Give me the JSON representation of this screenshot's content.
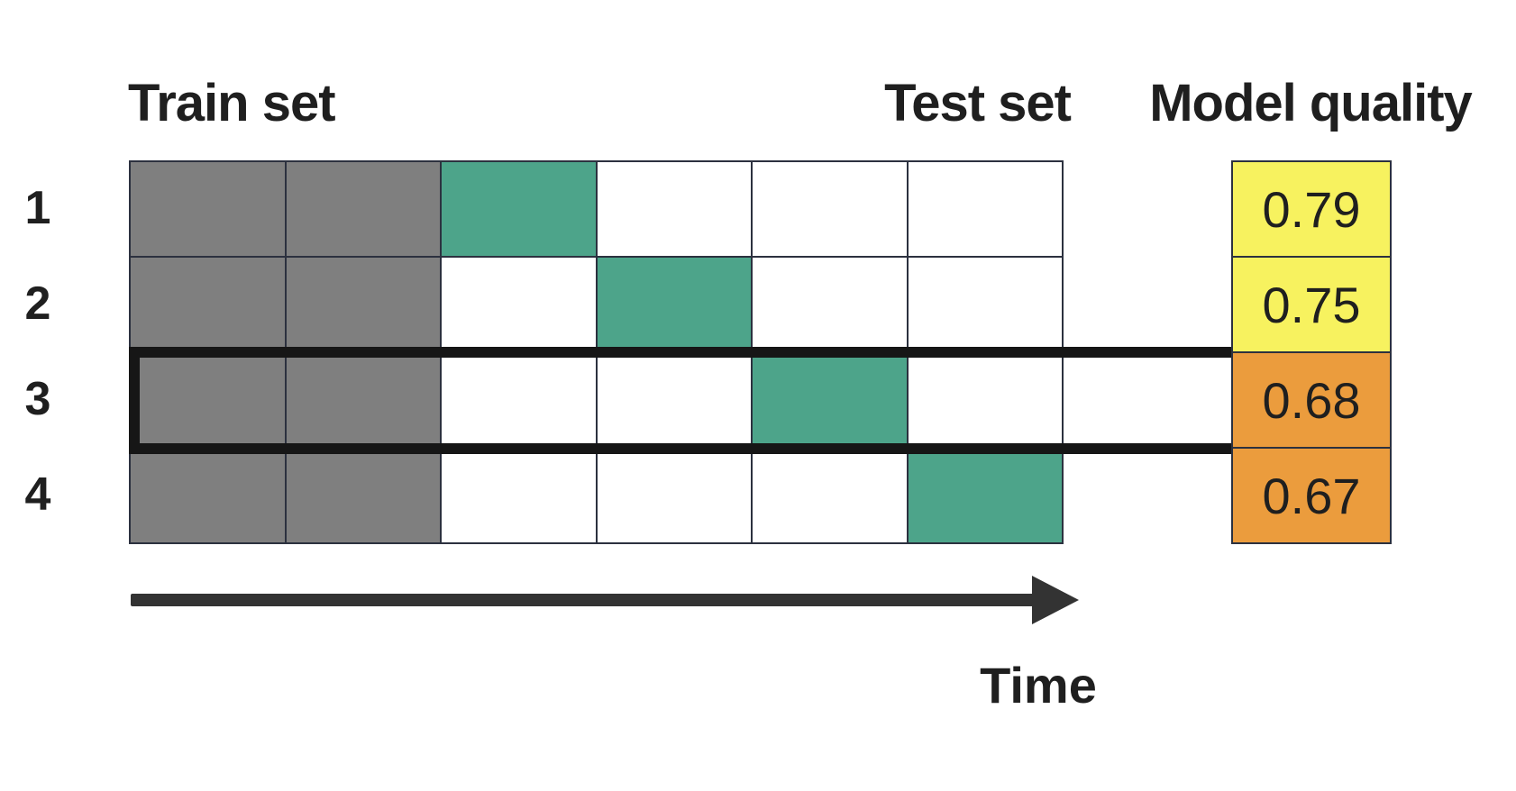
{
  "diagram": {
    "headers": {
      "train": "Train set",
      "test": "Test set",
      "model_quality": "Model quality"
    },
    "time_axis_label": "Time",
    "grid_columns": 6,
    "highlighted_fold": "3"
  },
  "folds": [
    {
      "id": "1",
      "cells": [
        "train",
        "train",
        "test",
        "blank",
        "blank",
        "blank"
      ],
      "quality": "0.79",
      "quality_level": "high",
      "highlighted": false
    },
    {
      "id": "2",
      "cells": [
        "train",
        "train",
        "blank",
        "test",
        "blank",
        "blank"
      ],
      "quality": "0.75",
      "quality_level": "high",
      "highlighted": false
    },
    {
      "id": "3",
      "cells": [
        "train",
        "train",
        "blank",
        "blank",
        "test",
        "blank"
      ],
      "quality": "0.68",
      "quality_level": "low",
      "highlighted": true
    },
    {
      "id": "4",
      "cells": [
        "train",
        "train",
        "blank",
        "blank",
        "blank",
        "test"
      ],
      "quality": "0.67",
      "quality_level": "low",
      "highlighted": false
    }
  ],
  "colors": {
    "train_cell": "#7f7f7f",
    "test_cell": "#4da48a",
    "blank_cell": "#ffffff",
    "quality_high": "#f7f25f",
    "quality_low": "#eb9c3d",
    "grid_line": "#2c313f",
    "highlight": "#161616",
    "arrow": "#333333",
    "text": "#1f1f1f"
  }
}
